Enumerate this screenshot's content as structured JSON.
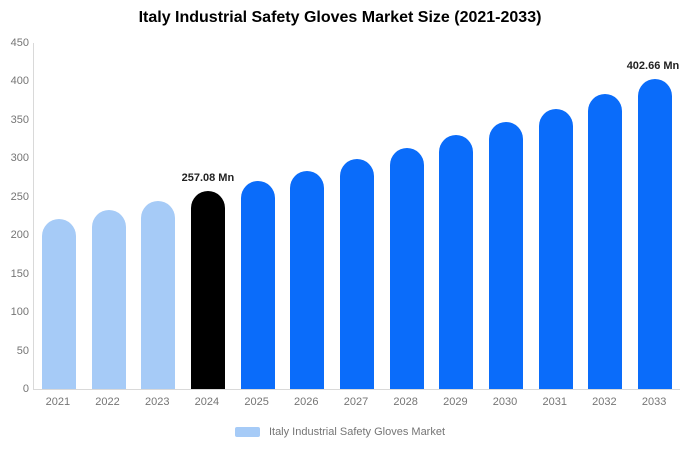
{
  "title": "Italy Industrial Safety Gloves Market Size (2021-2033)",
  "legend": {
    "label": "Italy Industrial Safety Gloves Market"
  },
  "colors": {
    "historical_bar": "#a6cbf7",
    "base_year_bar": "#000000",
    "forecast_bar": "#0a6cfa",
    "axis_text": "#757575",
    "axis_line": "#d9d9d9",
    "value_label_text": "#222222",
    "legend_text": "#757575",
    "background": "#ffffff"
  },
  "chart_data": {
    "type": "bar",
    "title": "Italy Industrial Safety Gloves Market Size (2021-2033)",
    "series_name": "Italy Industrial Safety Gloves Market",
    "unit": "Mn",
    "categories": [
      "2021",
      "2022",
      "2023",
      "2024",
      "2025",
      "2026",
      "2027",
      "2028",
      "2029",
      "2030",
      "2031",
      "2032",
      "2033"
    ],
    "values": [
      221.3,
      232.7,
      244.6,
      257.08,
      270.2,
      284.1,
      298.6,
      313.9,
      330.0,
      346.8,
      364.6,
      383.2,
      402.66
    ],
    "bar_colors": [
      "#a6cbf7",
      "#a6cbf7",
      "#a6cbf7",
      "#000000",
      "#0a6cfa",
      "#0a6cfa",
      "#0a6cfa",
      "#0a6cfa",
      "#0a6cfa",
      "#0a6cfa",
      "#0a6cfa",
      "#0a6cfa",
      "#0a6cfa"
    ],
    "data_labels": [
      "",
      "",
      "",
      "257.08 Mn",
      "",
      "",
      "",
      "",
      "",
      "",
      "",
      "",
      "402.66 Mn"
    ],
    "ylim": [
      0,
      450
    ],
    "yticks": [
      0,
      50,
      100,
      150,
      200,
      250,
      300,
      350,
      400,
      450
    ],
    "grid": false,
    "legend_position": "bottom"
  }
}
